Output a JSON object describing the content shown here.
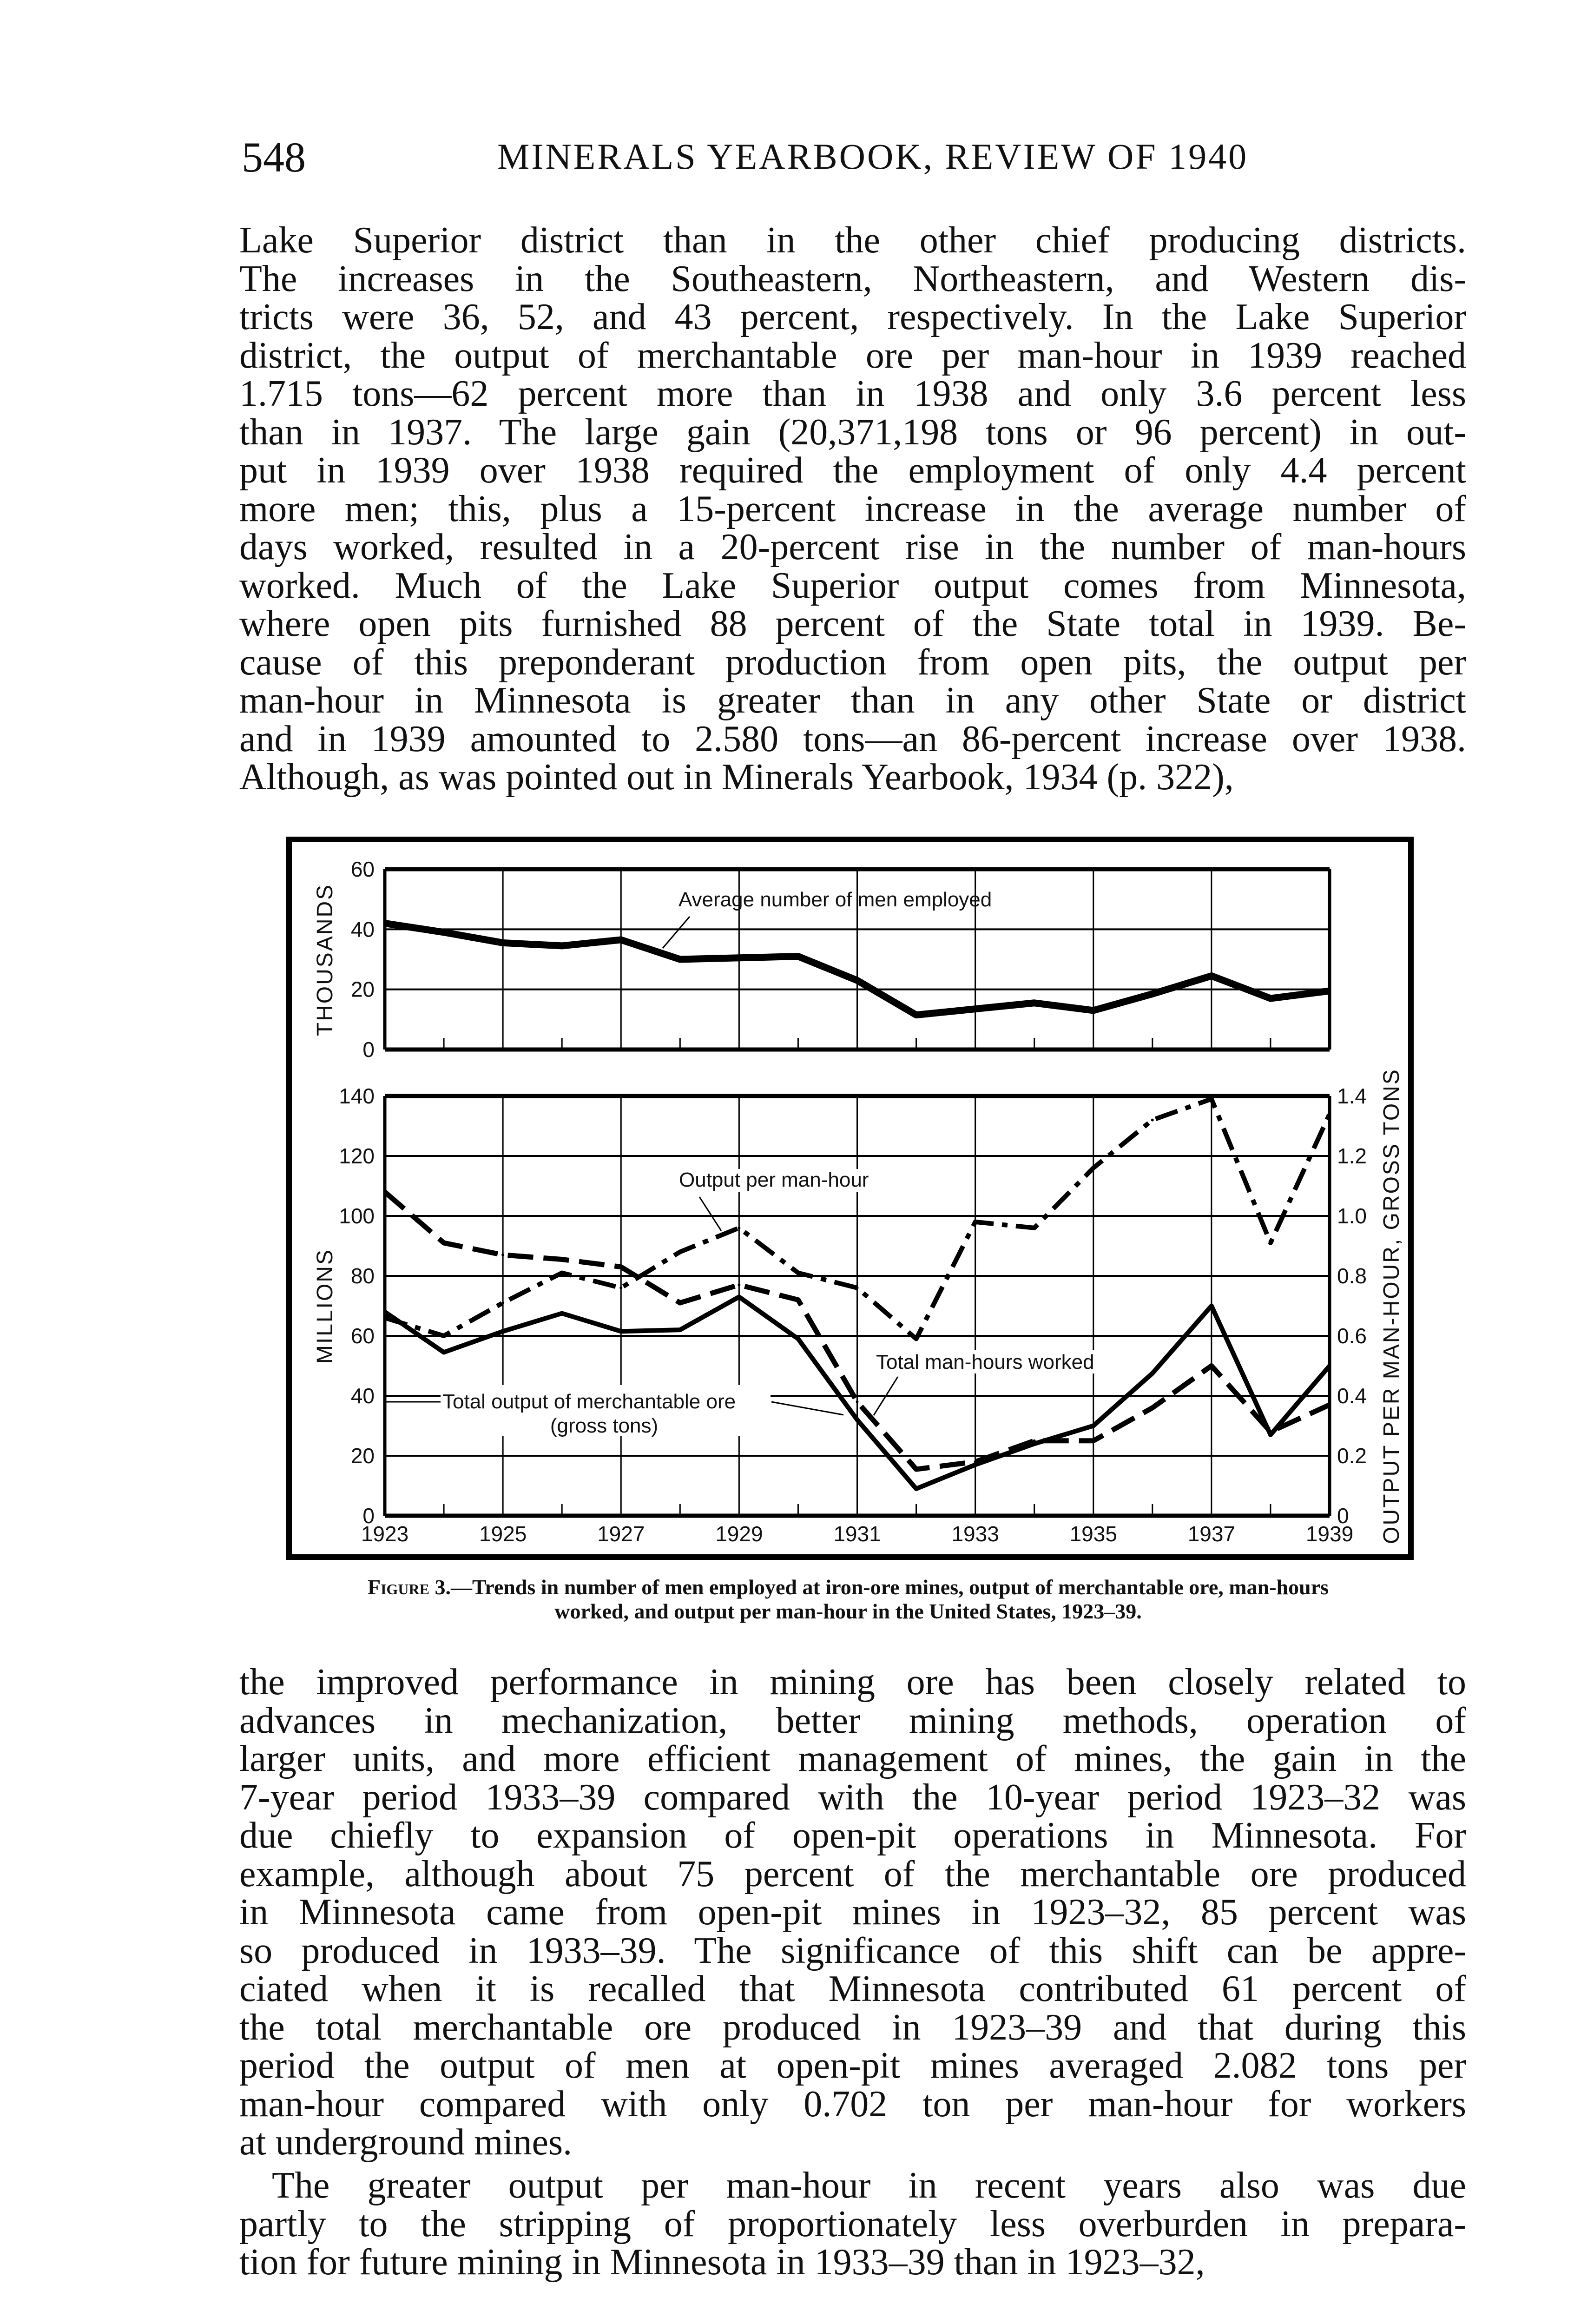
{
  "header": {
    "page_number": "548",
    "running_head": "MINERALS YEARBOOK, REVIEW OF 1940"
  },
  "paragraphs": [
    {
      "indent": false,
      "lines": [
        "Lake Superior district than in the other chief producing districts.",
        "The increases in the Southeastern, Northeastern, and Western dis-",
        "tricts were 36, 52, and 43 percent, respectively.  In the Lake Superior",
        "district, the output of merchantable ore per man-hour in 1939 reached",
        "1.715 tons—62 percent more than in 1938 and only 3.6 percent less",
        "than in 1937.  The large gain (20,371,198 tons or 96 percent) in out-",
        "put in 1939 over 1938 required the employment of only 4.4 percent",
        "more men; this, plus a 15-percent increase in the average number of",
        "days worked, resulted in a 20-percent rise in the number of man-hours",
        "worked.  Much of the Lake Superior output comes from Minnesota,",
        "where open pits furnished 88 percent of the State total in 1939.  Be-",
        "cause of this preponderant production from open pits, the output per",
        "man-hour in Minnesota is greater than in any other State or district",
        "and in 1939 amounted to 2.580 tons—an 86-percent increase over 1938.",
        "Although, as was pointed out in Minerals Yearbook, 1934 (p. 322),"
      ]
    },
    {
      "indent": false,
      "lines": [
        "the improved performance in mining ore has been closely related to",
        "advances in mechanization, better mining methods, operation of",
        "larger units, and more efficient management of mines, the gain in the",
        "7-year period 1933–39 compared with the 10-year period 1923–32 was",
        "due chiefly to expansion of open-pit operations in Minnesota.  For",
        "example, although about 75 percent of the merchantable ore produced",
        "in Minnesota came from open-pit mines in 1923–32, 85 percent was",
        "so produced in 1933–39.  The significance of this shift can be appre-",
        "ciated when it is recalled that Minnesota contributed 61 percent of",
        "the total merchantable ore produced in 1923–39 and that during this",
        "period the output of men at open-pit mines averaged 2.082 tons per",
        "man-hour compared with only 0.702 ton per man-hour for workers",
        "at underground mines."
      ]
    },
    {
      "indent": true,
      "lines": [
        "The greater output per man-hour in recent years also was due",
        "partly to the stripping of proportionately less overburden in prepara-",
        "tion for future mining in Minnesota in 1933–39 than in 1923–32,"
      ]
    }
  ],
  "caption": {
    "label": "Figure 3.",
    "line1": "—Trends in number of men employed at iron-ore mines, output of merchantable ore, man-hours",
    "line2": "worked, and output per man-hour in the United States, 1923–39."
  },
  "chart_data": [
    {
      "type": "line",
      "panel": "top",
      "ylabel": "THOUSANDS",
      "ylim": [
        0,
        60
      ],
      "yticks": [
        "0",
        "20",
        "40",
        "60"
      ],
      "x": [
        1923,
        1924,
        1925,
        1926,
        1927,
        1928,
        1929,
        1930,
        1931,
        1932,
        1933,
        1934,
        1935,
        1936,
        1937,
        1938,
        1939
      ],
      "grid": true,
      "series": [
        {
          "name": "Average number of men employed",
          "style": "solid-thick",
          "values": [
            42,
            39,
            35.5,
            34.5,
            36.5,
            30,
            30.5,
            31,
            23,
            11.5,
            13.5,
            15.5,
            13,
            18.5,
            24.5,
            17,
            19.5
          ]
        }
      ]
    },
    {
      "type": "line",
      "panel": "bottom",
      "ylabel": "MILLIONS",
      "y2label": "OUTPUT PER MAN-HOUR, GROSS TONS",
      "ylim": [
        0,
        140
      ],
      "y2lim": [
        0,
        1.4
      ],
      "yticks": [
        "0",
        "20",
        "40",
        "60",
        "80",
        "100",
        "120",
        "140"
      ],
      "y2ticks": [
        "0",
        "0.2",
        "0.4",
        "0.6",
        "0.8",
        "1.0",
        "1.2",
        "1.4"
      ],
      "xticks": [
        "1923",
        "1925",
        "1927",
        "1929",
        "1931",
        "1933",
        "1935",
        "1937",
        "1939"
      ],
      "x": [
        1923,
        1924,
        1925,
        1926,
        1927,
        1928,
        1929,
        1930,
        1931,
        1932,
        1933,
        1934,
        1935,
        1936,
        1937,
        1938,
        1939
      ],
      "grid": true,
      "series": [
        {
          "name": "Total output of merchantable ore (gross tons)",
          "axis": "left",
          "style": "solid",
          "values": [
            68,
            54.5,
            61.5,
            67.5,
            61.5,
            62,
            73,
            59,
            32,
            9,
            17,
            24,
            30,
            47.5,
            70,
            27,
            50
          ]
        },
        {
          "name": "Total man-hours worked",
          "axis": "left",
          "style": "dashed",
          "values": [
            108,
            91,
            87,
            85.5,
            83,
            71,
            77,
            72,
            38,
            15.5,
            18,
            25,
            25,
            36,
            50,
            28,
            37
          ]
        },
        {
          "name": "Output per man-hour",
          "axis": "right",
          "style": "dash-dot",
          "values": [
            0.66,
            0.6,
            0.71,
            0.81,
            0.76,
            0.88,
            0.96,
            0.81,
            0.76,
            0.59,
            0.98,
            0.96,
            1.16,
            1.32,
            1.39,
            0.91,
            1.34
          ]
        }
      ],
      "annotations": {
        "men": "Average number of men employed",
        "oph": "Output per man-hour",
        "mh": "Total man-hours worked",
        "ore1": "Total output of merchantable ore",
        "ore2": "(gross tons)"
      }
    }
  ]
}
